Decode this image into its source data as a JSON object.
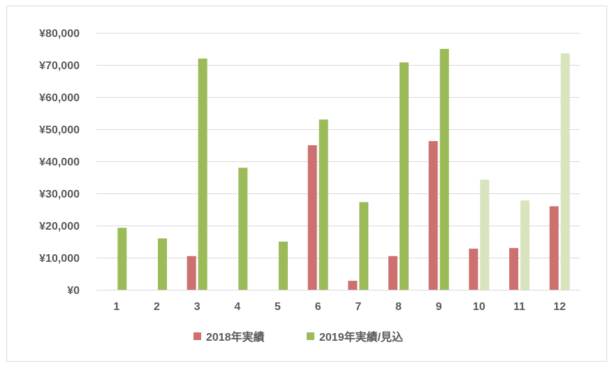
{
  "chart_data": {
    "type": "bar",
    "categories": [
      "1",
      "2",
      "3",
      "4",
      "5",
      "6",
      "7",
      "8",
      "9",
      "10",
      "11",
      "12"
    ],
    "ylim": [
      0,
      80000
    ],
    "yticks": [
      0,
      10000,
      20000,
      30000,
      40000,
      50000,
      60000,
      70000,
      80000
    ],
    "ytick_labels": [
      "¥0",
      "¥10,000",
      "¥20,000",
      "¥30,000",
      "¥40,000",
      "¥50,000",
      "¥60,000",
      "¥70,000",
      "¥80,000"
    ],
    "grid": true,
    "legend_position": "bottom",
    "series": [
      {
        "name": "2018年実績",
        "color": "#cd7070",
        "values": [
          0,
          0,
          10500,
          0,
          0,
          45000,
          2800,
          10500,
          46300,
          12800,
          13000,
          26000
        ]
      },
      {
        "name": "2019年実績/見込",
        "color": "#9bbb59",
        "forecast_color": "#d7e4bd",
        "forecast_from_index": 9,
        "values": [
          19300,
          16000,
          72000,
          38000,
          15000,
          53000,
          27300,
          70800,
          75000,
          34300,
          27800,
          73600
        ]
      }
    ]
  }
}
